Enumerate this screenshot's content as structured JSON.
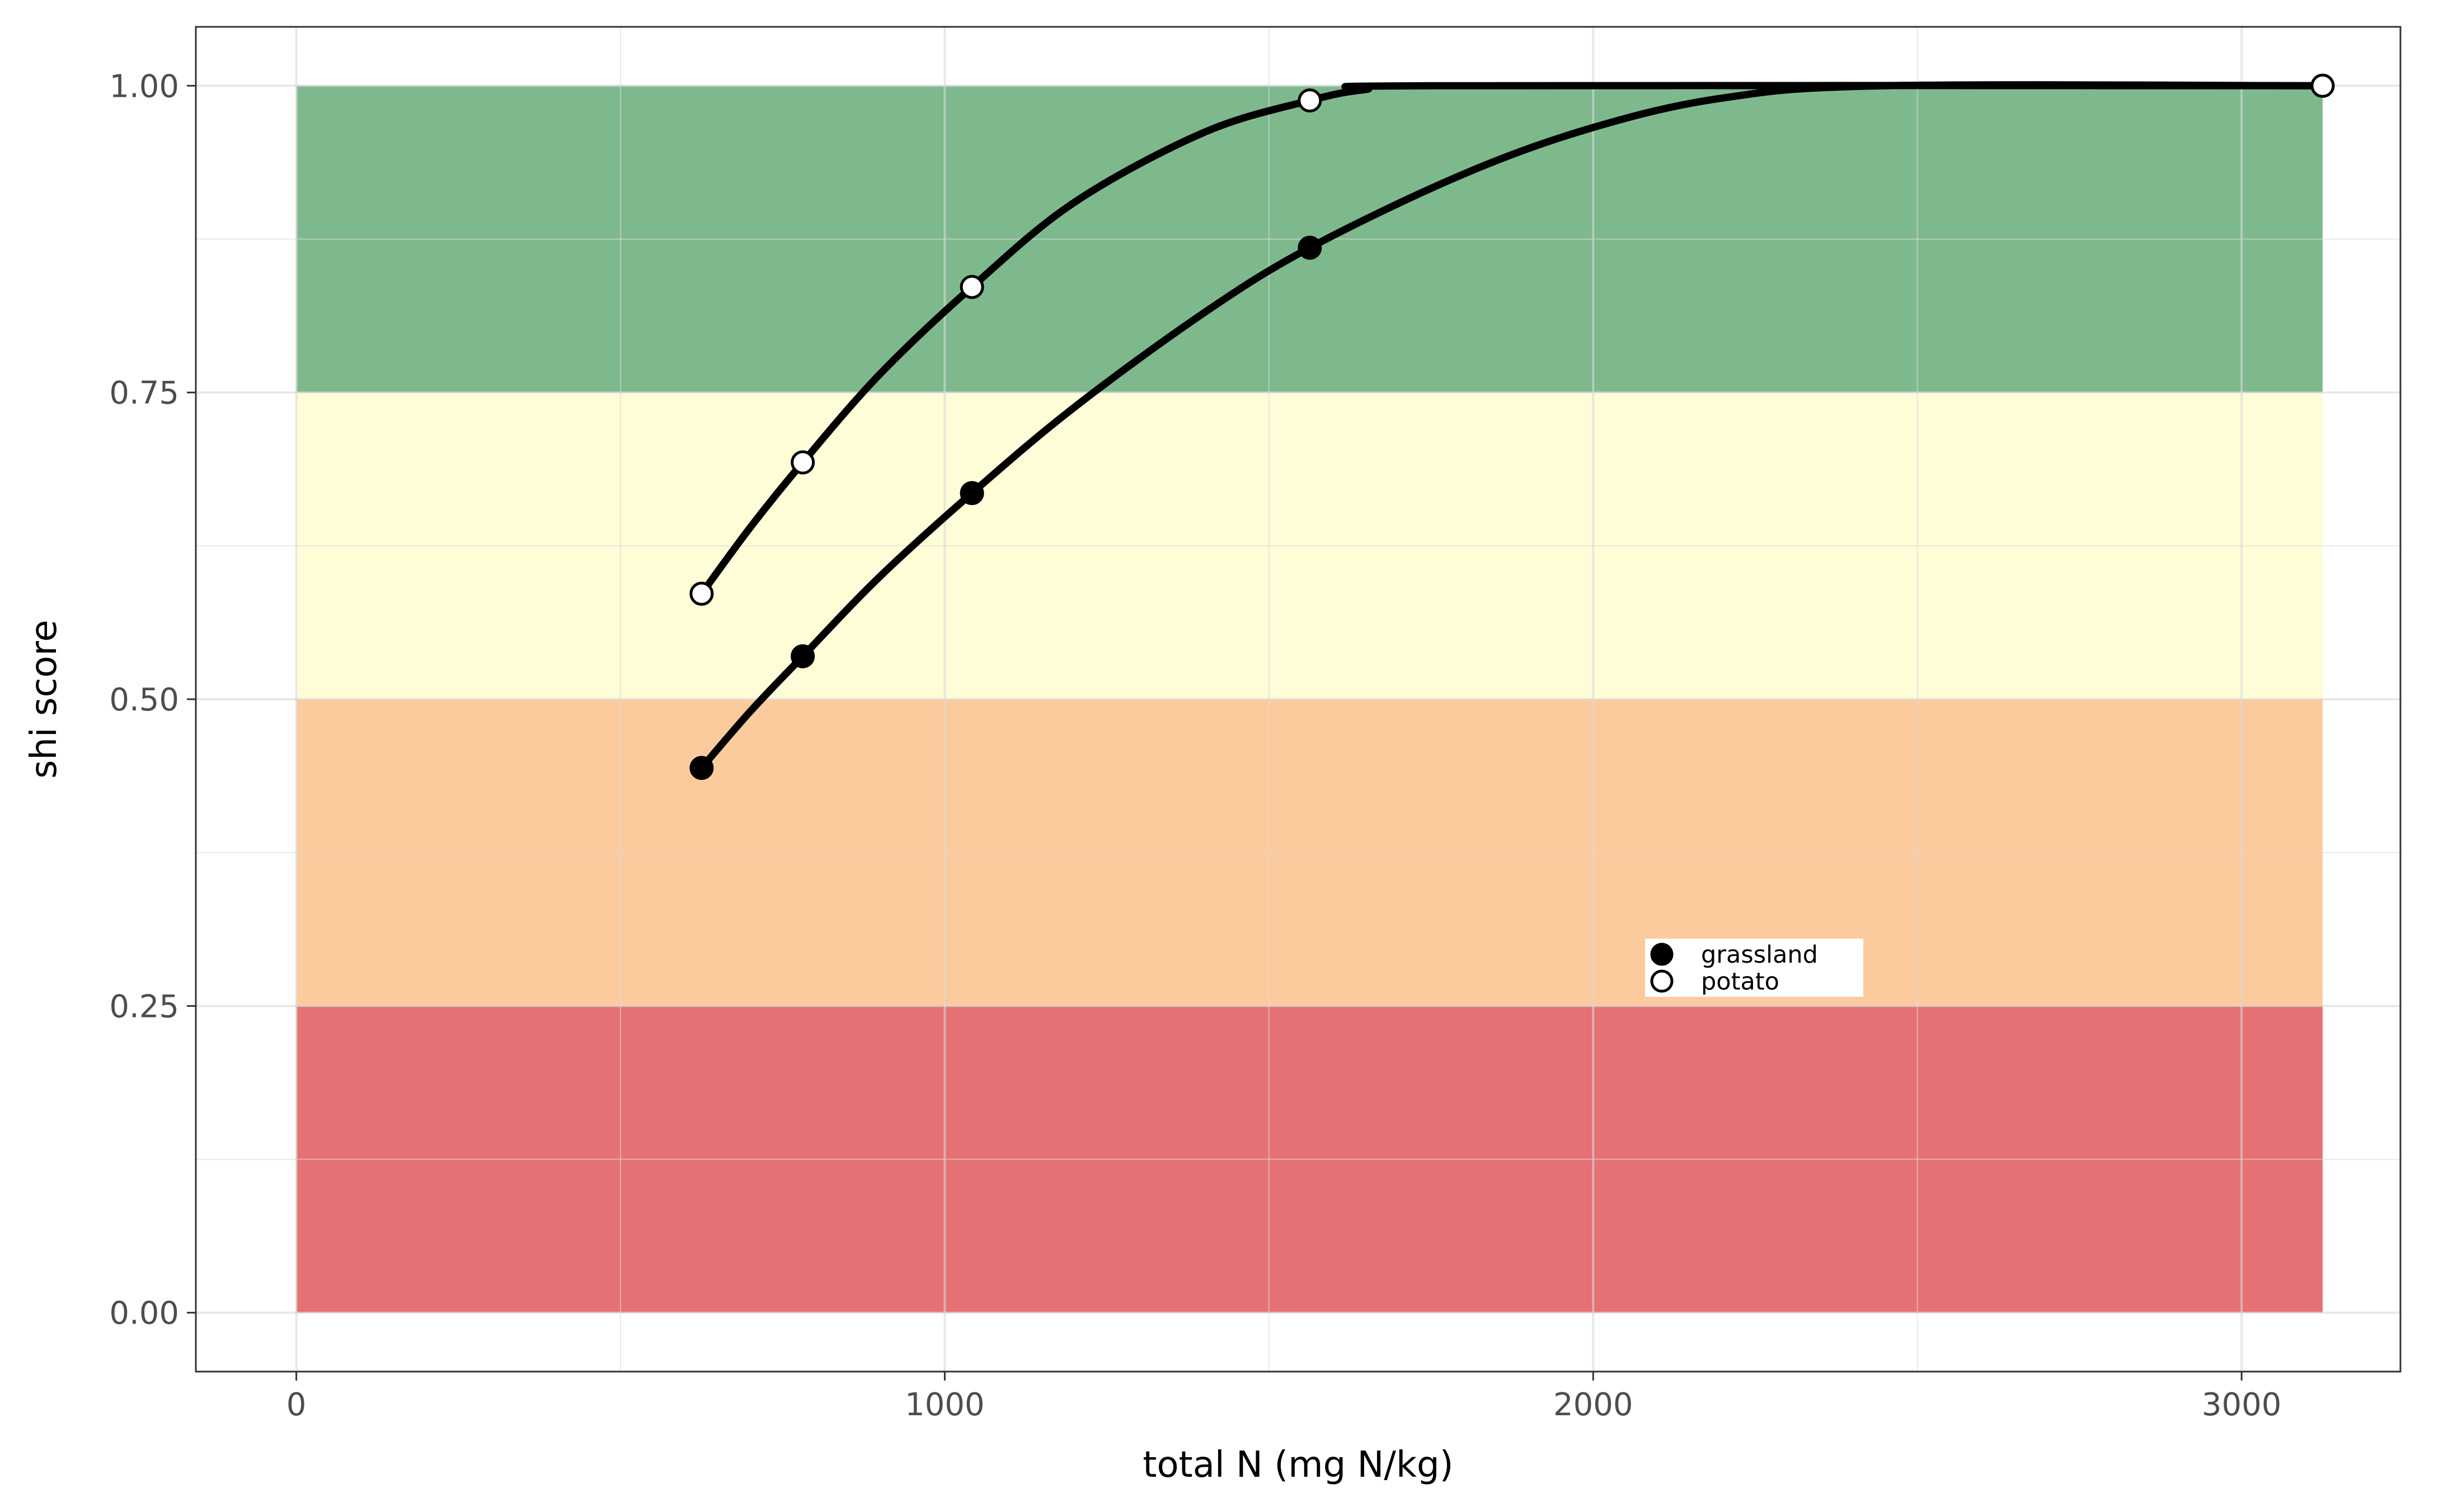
{
  "chart_data": {
    "type": "line",
    "title": "",
    "xlabel": "total N (mg N/kg)",
    "ylabel": "shi score",
    "xlim": [
      -155,
      3245
    ],
    "ylim": [
      -0.048,
      1.048
    ],
    "x_ticks": [
      0,
      1000,
      2000,
      3000
    ],
    "x_tick_labels": [
      "0",
      "1000",
      "2000",
      "3000"
    ],
    "y_ticks": [
      0,
      0.25,
      0.5,
      0.75,
      1.0
    ],
    "y_tick_labels": [
      "0.00",
      "0.25",
      "0.50",
      "0.75",
      "1.00"
    ],
    "grid": true,
    "bands": [
      {
        "from": 0.0,
        "to": 0.25,
        "x_from": 0,
        "x_to": 3125,
        "color": "#e67174"
      },
      {
        "from": 0.25,
        "to": 0.5,
        "x_from": 0,
        "x_to": 3125,
        "color": "#fccb9d"
      },
      {
        "from": 0.5,
        "to": 0.75,
        "x_from": 0,
        "x_to": 3125,
        "color": "#fefdd8"
      },
      {
        "from": 0.75,
        "to": 1.0,
        "x_from": 0,
        "x_to": 3125,
        "color": "#7eb98e"
      }
    ],
    "series": [
      {
        "name": "grassland",
        "marker": "filled",
        "color": "#000000",
        "points": {
          "x": [
            625,
            781,
            1042,
            1563,
            3125
          ],
          "y": [
            0.444,
            0.535,
            0.668,
            0.868,
            1.0
          ]
        },
        "curve": {
          "x": [
            625,
            700,
            781,
            900,
            1042,
            1200,
            1400,
            1563,
            1800,
            2000,
            2200,
            2450,
            3125
          ],
          "y": [
            0.444,
            0.49,
            0.535,
            0.6,
            0.668,
            0.738,
            0.815,
            0.868,
            0.928,
            0.966,
            0.99,
            1.0,
            1.0
          ]
        }
      },
      {
        "name": "potato",
        "marker": "open",
        "color": "#000000",
        "points": {
          "x": [
            625,
            781,
            1042,
            1563,
            3125
          ],
          "y": [
            0.586,
            0.693,
            0.836,
            0.988,
            1.0
          ]
        },
        "curve": {
          "x": [
            625,
            700,
            781,
            900,
            1042,
            1200,
            1400,
            1563,
            1650,
            1750,
            3125
          ],
          "y": [
            0.586,
            0.64,
            0.693,
            0.765,
            0.836,
            0.905,
            0.962,
            0.988,
            0.997,
            1.0,
            1.0
          ]
        }
      }
    ],
    "legend": {
      "placement": "inside",
      "entries": [
        "grassland",
        "potato"
      ]
    }
  }
}
